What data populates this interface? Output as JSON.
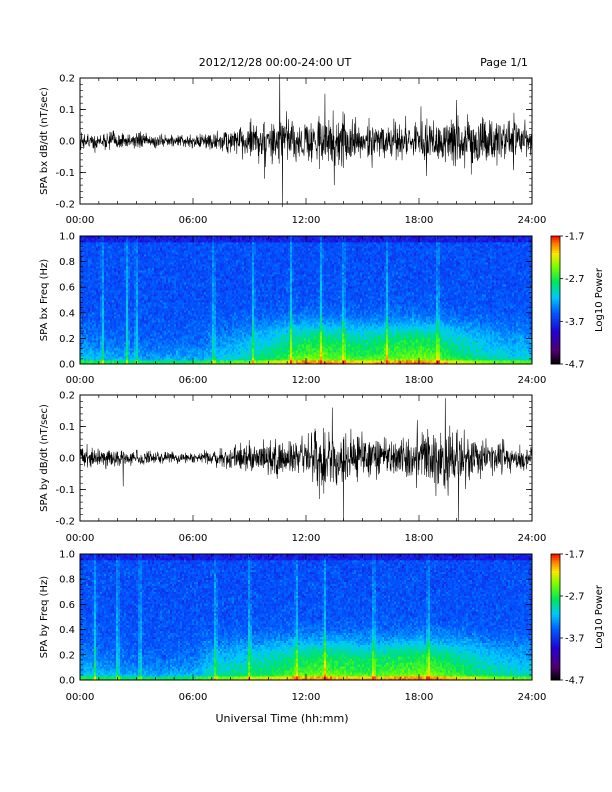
{
  "header": {
    "date_range": "2012/12/28  00:00-24:00 UT",
    "page": "Page 1/1"
  },
  "footer": {
    "xlabel": "Universal Time (hh:mm)"
  },
  "chart_data": [
    {
      "type": "line",
      "ylabel": "SPA bx dB/dt (nT/sec)",
      "x_ticks": [
        "00:00",
        "06:00",
        "12:00",
        "18:00",
        "24:00"
      ],
      "x_range_hours": [
        0,
        24
      ],
      "ylim": [
        -0.2,
        0.2
      ],
      "y_ticks": [
        "0.2",
        "0.1",
        "0.0",
        "-0.1",
        "-0.2"
      ],
      "y_tick_values": [
        0.2,
        0.1,
        0.0,
        -0.1,
        -0.2
      ],
      "envelope": {
        "x": [
          0,
          1,
          2,
          3,
          4,
          5,
          6,
          7,
          8,
          9,
          10,
          11,
          12,
          13,
          14,
          15,
          16,
          17,
          18,
          19,
          20,
          21,
          22,
          23,
          24
        ],
        "amplitude": [
          0.03,
          0.028,
          0.03,
          0.025,
          0.022,
          0.02,
          0.02,
          0.03,
          0.045,
          0.06,
          0.07,
          0.07,
          0.075,
          0.09,
          0.08,
          0.06,
          0.06,
          0.06,
          0.06,
          0.075,
          0.085,
          0.085,
          0.075,
          0.06,
          0.05
        ]
      },
      "spikes": [
        {
          "x": 10.6,
          "y": 0.22
        },
        {
          "x": 10.75,
          "y": -0.21
        },
        {
          "x": 9.8,
          "y": -0.12
        },
        {
          "x": 13.0,
          "y": 0.15
        },
        {
          "x": 13.5,
          "y": -0.14
        },
        {
          "x": 20.0,
          "y": 0.13
        },
        {
          "x": 18.1,
          "y": 0.11
        }
      ]
    },
    {
      "type": "heatmap",
      "ylabel": "SPA bx Freq (Hz)",
      "x_ticks": [
        "00:00",
        "06:00",
        "12:00",
        "18:00",
        "24:00"
      ],
      "x_range_hours": [
        0,
        24
      ],
      "ylim": [
        0.0,
        1.0
      ],
      "y_ticks": [
        "1.0",
        "0.8",
        "0.6",
        "0.4",
        "0.2",
        "0.0"
      ],
      "y_tick_values": [
        1.0,
        0.8,
        0.6,
        0.4,
        0.2,
        0.0
      ],
      "colorbar": {
        "label": "Log10 Power",
        "ticks": [
          "-1.7",
          "-2.7",
          "-3.7",
          "-4.7"
        ],
        "range": [
          -4.7,
          -1.7
        ]
      },
      "activity": {
        "x": [
          0,
          2,
          4,
          6,
          8,
          10,
          11,
          12,
          13,
          14,
          15,
          16,
          17,
          18,
          19,
          20,
          22,
          24
        ],
        "level": [
          0.35,
          0.3,
          0.28,
          0.3,
          0.4,
          0.55,
          0.65,
          0.75,
          0.75,
          0.7,
          0.65,
          0.7,
          0.75,
          0.78,
          0.72,
          0.6,
          0.45,
          0.4
        ]
      },
      "vertical_streaks": [
        1.2,
        2.5,
        3.0,
        7.1,
        9.2,
        11.2,
        12.8,
        14.0,
        16.3,
        19.0
      ]
    },
    {
      "type": "line",
      "ylabel": "SPA by dB/dt (nT/sec)",
      "x_ticks": [
        "00:00",
        "06:00",
        "12:00",
        "18:00",
        "24:00"
      ],
      "x_range_hours": [
        0,
        24
      ],
      "ylim": [
        -0.2,
        0.2
      ],
      "y_ticks": [
        "0.2",
        "0.1",
        "0.0",
        "-0.1",
        "-0.2"
      ],
      "y_tick_values": [
        0.2,
        0.1,
        0.0,
        -0.1,
        -0.2
      ],
      "envelope": {
        "x": [
          0,
          1,
          2,
          3,
          4,
          5,
          6,
          7,
          8,
          9,
          10,
          11,
          12,
          13,
          14,
          15,
          16,
          17,
          18,
          19,
          20,
          21,
          22,
          23,
          24
        ],
        "amplitude": [
          0.035,
          0.03,
          0.03,
          0.025,
          0.022,
          0.018,
          0.018,
          0.022,
          0.035,
          0.05,
          0.06,
          0.065,
          0.08,
          0.1,
          0.09,
          0.07,
          0.07,
          0.06,
          0.09,
          0.11,
          0.1,
          0.07,
          0.06,
          0.05,
          0.045
        ]
      },
      "spikes": [
        {
          "x": 14.0,
          "y": -0.2
        },
        {
          "x": 13.4,
          "y": 0.16
        },
        {
          "x": 19.4,
          "y": 0.19
        },
        {
          "x": 20.1,
          "y": -0.2
        },
        {
          "x": 2.3,
          "y": -0.09
        },
        {
          "x": 12.7,
          "y": -0.13
        }
      ]
    },
    {
      "type": "heatmap",
      "ylabel": "SPA by Freq (Hz)",
      "x_ticks": [
        "00:00",
        "06:00",
        "12:00",
        "18:00",
        "24:00"
      ],
      "x_range_hours": [
        0,
        24
      ],
      "ylim": [
        0.0,
        1.0
      ],
      "y_ticks": [
        "1.0",
        "0.8",
        "0.6",
        "0.4",
        "0.2",
        "0.0"
      ],
      "y_tick_values": [
        1.0,
        0.8,
        0.6,
        0.4,
        0.2,
        0.0
      ],
      "colorbar": {
        "label": "Log10 Power",
        "ticks": [
          "-1.7",
          "-2.7",
          "-3.7",
          "-4.7"
        ],
        "range": [
          -4.7,
          -1.7
        ]
      },
      "activity": {
        "x": [
          0,
          2,
          4,
          6,
          7,
          8,
          10,
          12,
          13,
          14,
          15,
          16,
          17,
          18,
          19,
          20,
          22,
          24
        ],
        "level": [
          0.35,
          0.3,
          0.28,
          0.32,
          0.45,
          0.5,
          0.6,
          0.72,
          0.75,
          0.72,
          0.68,
          0.7,
          0.75,
          0.78,
          0.75,
          0.65,
          0.5,
          0.42
        ]
      },
      "vertical_streaks": [
        0.8,
        2.0,
        3.2,
        7.2,
        9.0,
        11.5,
        13.0,
        15.6,
        18.5
      ]
    }
  ]
}
